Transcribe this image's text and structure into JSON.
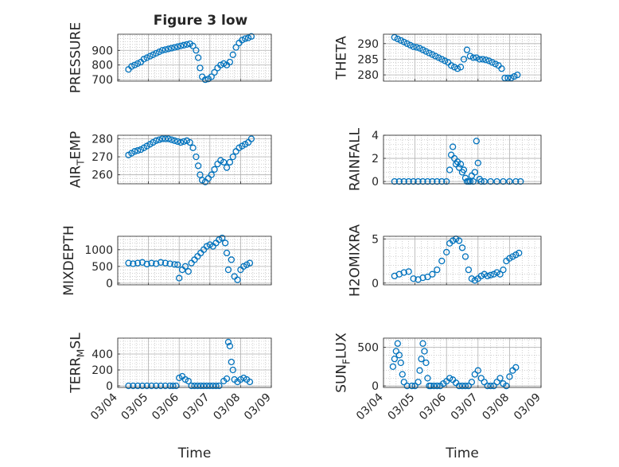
{
  "figure_title": "Figure 3 low",
  "colors": {
    "marker": "#0072BD",
    "axis": "#262626",
    "grid": "#b0b0b0"
  },
  "x_ticks": [
    "03/04",
    "03/05",
    "03/06",
    "03/07",
    "03/08",
    "03/09"
  ],
  "x_label": "Time",
  "chart_data": [
    {
      "type": "scatter",
      "ylabel": "PRESSURE",
      "ylim": [
        690,
        1010
      ],
      "yticks": [
        "700",
        "800",
        "900"
      ],
      "ytick_values": [
        700,
        800,
        900
      ],
      "x": [
        0.35,
        0.45,
        0.55,
        0.65,
        0.75,
        0.85,
        0.95,
        1.05,
        1.15,
        1.25,
        1.35,
        1.45,
        1.55,
        1.65,
        1.75,
        1.85,
        1.95,
        2.05,
        2.15,
        2.25,
        2.35,
        2.45,
        2.55,
        2.62,
        2.68,
        2.75,
        2.85,
        2.95,
        3.05,
        3.15,
        3.25,
        3.35,
        3.45,
        3.55,
        3.65,
        3.75,
        3.85,
        3.95,
        4.05,
        4.15,
        4.25,
        4.35
      ],
      "y": [
        770,
        790,
        800,
        810,
        820,
        840,
        850,
        860,
        870,
        880,
        890,
        900,
        905,
        910,
        915,
        920,
        925,
        930,
        935,
        940,
        945,
        930,
        900,
        850,
        780,
        720,
        700,
        705,
        720,
        750,
        780,
        800,
        810,
        800,
        820,
        870,
        920,
        950,
        970,
        980,
        985,
        995
      ]
    },
    {
      "type": "scatter",
      "ylabel": "THETA",
      "ylim": [
        278,
        293
      ],
      "yticks": [
        "280",
        "285",
        "290"
      ],
      "ytick_values": [
        280,
        285,
        290
      ],
      "x": [
        0.35,
        0.45,
        0.55,
        0.65,
        0.75,
        0.85,
        0.95,
        1.05,
        1.15,
        1.25,
        1.35,
        1.45,
        1.55,
        1.65,
        1.75,
        1.85,
        1.95,
        2.05,
        2.15,
        2.25,
        2.35,
        2.45,
        2.55,
        2.65,
        2.75,
        2.85,
        2.95,
        3.05,
        3.15,
        3.25,
        3.35,
        3.45,
        3.55,
        3.65,
        3.75,
        3.85,
        3.95,
        4.05,
        4.15,
        4.25
      ],
      "y": [
        292,
        291.5,
        291,
        290.5,
        290,
        289.5,
        289,
        288.8,
        288.5,
        288,
        287.5,
        287,
        286.5,
        286,
        285.5,
        285,
        284.5,
        284,
        283,
        282.5,
        282,
        282.5,
        285,
        288,
        286,
        285.5,
        285.5,
        285,
        285,
        284.8,
        284.5,
        284,
        283.5,
        283,
        282,
        279,
        279,
        279,
        279.5,
        280
      ]
    },
    {
      "type": "scatter",
      "ylabel": "AIR_T_EMP",
      "ylim": [
        255,
        282
      ],
      "yticks": [
        "260",
        "270",
        "280"
      ],
      "ytick_values": [
        260,
        270,
        280
      ],
      "x": [
        0.35,
        0.45,
        0.55,
        0.65,
        0.75,
        0.85,
        0.95,
        1.05,
        1.15,
        1.25,
        1.35,
        1.45,
        1.55,
        1.65,
        1.75,
        1.85,
        1.95,
        2.05,
        2.15,
        2.25,
        2.35,
        2.45,
        2.55,
        2.62,
        2.68,
        2.75,
        2.85,
        2.95,
        3.05,
        3.15,
        3.25,
        3.35,
        3.45,
        3.55,
        3.65,
        3.75,
        3.85,
        3.95,
        4.05,
        4.15,
        4.25,
        4.35
      ],
      "y": [
        271,
        272,
        273,
        273.5,
        274,
        275,
        276,
        277,
        278,
        279,
        279.5,
        280,
        280,
        280,
        279.5,
        279,
        278.5,
        278,
        278.5,
        279,
        278,
        275,
        270,
        265,
        260,
        257,
        256,
        258,
        260,
        263,
        266,
        268,
        267,
        264,
        267,
        270,
        273,
        275,
        276,
        277,
        278,
        280
      ]
    },
    {
      "type": "scatter",
      "ylabel": "RAINFALL",
      "ylim": [
        -0.2,
        4
      ],
      "yticks": [
        "0",
        "2",
        "4"
      ],
      "ytick_values": [
        0,
        2,
        4
      ],
      "x": [
        0.35,
        0.5,
        0.65,
        0.8,
        0.95,
        1.1,
        1.25,
        1.4,
        1.55,
        1.7,
        1.85,
        2.0,
        2.1,
        2.15,
        2.2,
        2.25,
        2.3,
        2.35,
        2.4,
        2.45,
        2.5,
        2.55,
        2.6,
        2.65,
        2.7,
        2.75,
        2.8,
        2.85,
        2.9,
        2.95,
        3.0,
        3.05,
        3.1,
        3.2,
        3.4,
        3.6,
        3.8,
        4.0,
        4.2,
        4.35
      ],
      "y": [
        0,
        0,
        0,
        0,
        0,
        0,
        0,
        0,
        0,
        0,
        0,
        0,
        1.0,
        2.3,
        3.0,
        2.0,
        1.5,
        1.7,
        1.2,
        1.5,
        0.8,
        1.0,
        0.3,
        0,
        0,
        0,
        0.5,
        0,
        0.8,
        3.5,
        1.6,
        0.2,
        0,
        0,
        0,
        0,
        0,
        0,
        0,
        0
      ]
    },
    {
      "type": "scatter",
      "ylabel": "MIXDEPTH",
      "ylim": [
        -50,
        1400
      ],
      "yticks": [
        "0",
        "500",
        "1000"
      ],
      "ytick_values": [
        0,
        500,
        1000
      ],
      "x": [
        0.35,
        0.5,
        0.65,
        0.8,
        0.95,
        1.1,
        1.25,
        1.4,
        1.55,
        1.7,
        1.85,
        1.95,
        2.0,
        2.1,
        2.2,
        2.3,
        2.4,
        2.5,
        2.6,
        2.7,
        2.8,
        2.9,
        3.0,
        3.1,
        3.2,
        3.3,
        3.4,
        3.5,
        3.55,
        3.6,
        3.7,
        3.8,
        3.9,
        4.0,
        4.1,
        4.2,
        4.3
      ],
      "y": [
        600,
        580,
        600,
        620,
        570,
        600,
        580,
        620,
        600,
        580,
        560,
        550,
        150,
        400,
        500,
        350,
        600,
        700,
        800,
        900,
        1000,
        1100,
        1150,
        1100,
        1200,
        1300,
        1350,
        1200,
        900,
        400,
        700,
        200,
        100,
        400,
        500,
        550,
        600
      ]
    },
    {
      "type": "scatter",
      "ylabel": "H2OMIXRA",
      "ylim": [
        -0.2,
        5.3
      ],
      "yticks": [
        "0",
        "5"
      ],
      "ytick_values": [
        0,
        5
      ],
      "x": [
        0.35,
        0.5,
        0.65,
        0.8,
        0.95,
        1.1,
        1.25,
        1.4,
        1.55,
        1.7,
        1.85,
        2.0,
        2.1,
        2.2,
        2.3,
        2.4,
        2.5,
        2.6,
        2.7,
        2.8,
        2.9,
        3.0,
        3.1,
        3.2,
        3.3,
        3.4,
        3.5,
        3.6,
        3.7,
        3.8,
        3.9,
        4.0,
        4.1,
        4.2,
        4.3
      ],
      "y": [
        0.8,
        1.0,
        1.2,
        1.3,
        0.5,
        0.4,
        0.6,
        0.7,
        1.0,
        1.5,
        2.5,
        3.5,
        4.5,
        4.8,
        5.0,
        4.8,
        4.0,
        3.0,
        1.5,
        0.5,
        0.3,
        0.5,
        0.8,
        1.0,
        0.8,
        0.9,
        1.0,
        1.2,
        1.0,
        1.5,
        2.5,
        2.8,
        3.0,
        3.2,
        3.4
      ]
    },
    {
      "type": "scatter",
      "ylabel": "TERR_M_SL",
      "ylim": [
        -20,
        600
      ],
      "yticks": [
        "0",
        "200",
        "400"
      ],
      "ytick_values": [
        0,
        200,
        400
      ],
      "x": [
        0.35,
        0.5,
        0.65,
        0.8,
        0.95,
        1.1,
        1.25,
        1.4,
        1.55,
        1.7,
        1.8,
        1.9,
        2.0,
        2.1,
        2.2,
        2.3,
        2.4,
        2.5,
        2.6,
        2.7,
        2.8,
        2.9,
        3.0,
        3.1,
        3.2,
        3.3,
        3.45,
        3.55,
        3.6,
        3.65,
        3.7,
        3.75,
        3.8,
        3.9,
        4.0,
        4.1,
        4.2,
        4.3
      ],
      "y": [
        0,
        0,
        0,
        0,
        0,
        0,
        0,
        0,
        0,
        0,
        0,
        0,
        100,
        120,
        80,
        60,
        0,
        0,
        0,
        0,
        0,
        0,
        0,
        0,
        0,
        0,
        60,
        90,
        550,
        500,
        300,
        200,
        80,
        50,
        80,
        100,
        80,
        50
      ]
    },
    {
      "type": "scatter",
      "ylabel": "SUN_F_LUX",
      "ylim": [
        -20,
        620
      ],
      "yticks": [
        "0",
        "500"
      ],
      "ytick_values": [
        0,
        500
      ],
      "x": [
        0.3,
        0.35,
        0.4,
        0.45,
        0.5,
        0.55,
        0.6,
        0.65,
        0.75,
        0.9,
        1.0,
        1.1,
        1.15,
        1.2,
        1.25,
        1.3,
        1.35,
        1.4,
        1.45,
        1.5,
        1.6,
        1.7,
        1.8,
        1.9,
        2.0,
        2.1,
        2.2,
        2.3,
        2.4,
        2.5,
        2.6,
        2.7,
        2.8,
        2.9,
        3.0,
        3.1,
        3.2,
        3.3,
        3.4,
        3.5,
        3.6,
        3.7,
        3.8,
        3.9,
        4.0,
        4.1,
        4.2
      ],
      "y": [
        250,
        350,
        450,
        550,
        400,
        300,
        150,
        50,
        0,
        0,
        0,
        50,
        200,
        350,
        550,
        450,
        300,
        100,
        0,
        0,
        0,
        0,
        0,
        30,
        60,
        100,
        80,
        40,
        0,
        0,
        0,
        0,
        50,
        150,
        200,
        100,
        50,
        0,
        0,
        0,
        50,
        100,
        30,
        0,
        120,
        200,
        240
      ]
    }
  ]
}
